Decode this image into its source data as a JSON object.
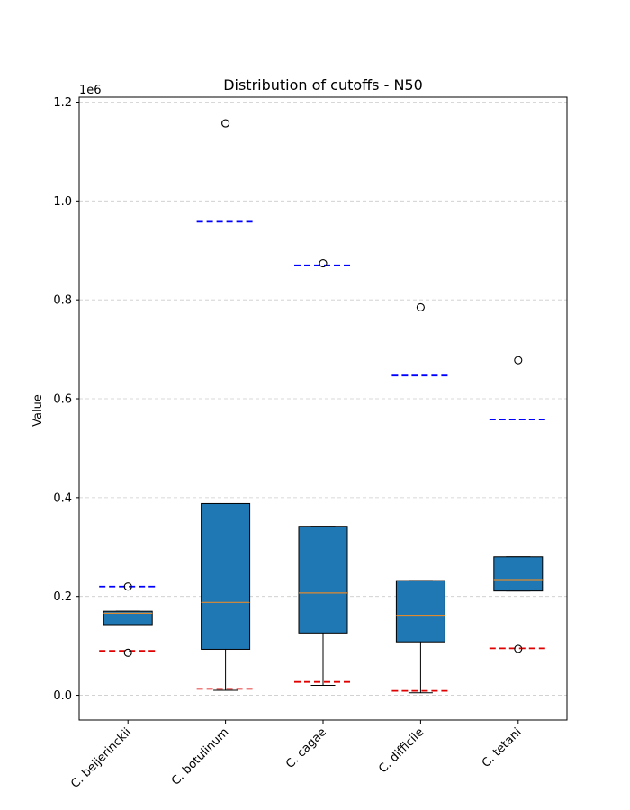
{
  "chart_data": {
    "type": "box",
    "title": "Distribution of cutoffs - N50",
    "xlabel": "",
    "ylabel": "Value",
    "y_offset_label": "1e6",
    "ylim": [
      -50000,
      1210000
    ],
    "yticks": [
      0,
      200000,
      400000,
      600000,
      800000,
      1000000,
      1200000
    ],
    "ytick_labels": [
      "0.0",
      "0.2",
      "0.4",
      "0.6",
      "0.8",
      "1.0",
      "1.2"
    ],
    "grid": "y-dashed",
    "categories": [
      "C. beijerinckii",
      "C. botulinum",
      "C. cagae",
      "C. difficile",
      "C. tetani"
    ],
    "boxes": [
      {
        "whisker_low": 143000,
        "q1": 143000,
        "median": 166000,
        "q3": 170000,
        "whisker_high": 170000,
        "outliers": [
          220000,
          86000
        ]
      },
      {
        "whisker_low": 10000,
        "q1": 93000,
        "median": 188000,
        "q3": 388000,
        "whisker_high": 388000,
        "outliers": [
          1157000
        ]
      },
      {
        "whisker_low": 20000,
        "q1": 126000,
        "median": 207000,
        "q3": 342000,
        "whisker_high": 342000,
        "outliers": [
          874000
        ]
      },
      {
        "whisker_low": 5000,
        "q1": 108000,
        "median": 162000,
        "q3": 232000,
        "whisker_high": 232000,
        "outliers": [
          785000
        ]
      },
      {
        "whisker_low": 211000,
        "q1": 211000,
        "median": 234000,
        "q3": 280000,
        "whisker_high": 280000,
        "outliers": [
          678000,
          94000
        ]
      }
    ],
    "upper_cutoffs": [
      220000,
      958000,
      870000,
      647000,
      558000
    ],
    "lower_cutoffs": [
      90000,
      13000,
      27000,
      9000,
      95000
    ],
    "colors": {
      "box_fill": "#1f77b4",
      "median": "#e08a2f",
      "upper_cutoff": "#0000ff",
      "lower_cutoff": "#e00000",
      "grid": "#cccccc"
    }
  }
}
